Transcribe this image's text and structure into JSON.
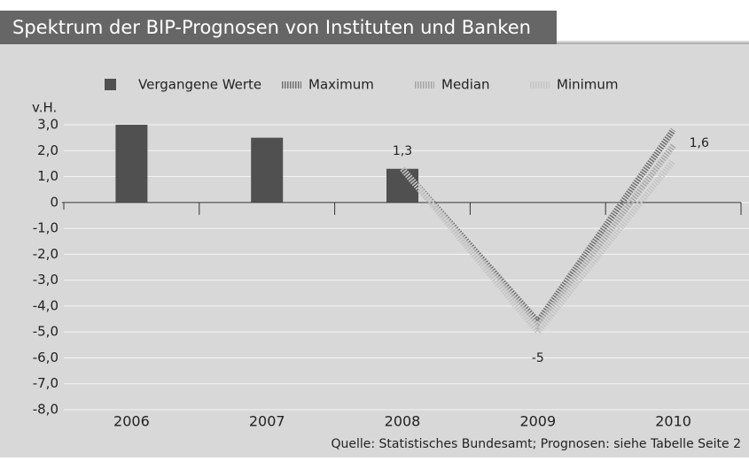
{
  "chart_data": {
    "type": "bar-line",
    "title": "Spektrum der BIP-Prognosen von Instituten und Banken",
    "y_axis_label": "v.H.",
    "source": "Quelle: Statistisches Bundesamt; Prognosen: siehe Tabelle Seite 2",
    "categories": [
      "2006",
      "2007",
      "2008",
      "2009",
      "2010"
    ],
    "series": [
      {
        "name": "Vergangene Werte",
        "kind": "bar",
        "color": "#505050",
        "values": [
          3.0,
          2.5,
          1.3,
          null,
          null
        ],
        "value_labels": [
          null,
          null,
          "1,3",
          null,
          null
        ]
      },
      {
        "name": "Maximum",
        "kind": "line",
        "color": "#6e6e6e",
        "values": [
          null,
          null,
          1.3,
          -4.6,
          2.8
        ]
      },
      {
        "name": "Median",
        "kind": "line",
        "color": "#a6a6a6",
        "values": [
          null,
          null,
          1.3,
          -4.8,
          2.2
        ]
      },
      {
        "name": "Minimum",
        "kind": "line",
        "color": "#c4c4c4",
        "values": [
          null,
          null,
          1.3,
          -5.0,
          1.6
        ],
        "value_labels": [
          null,
          null,
          null,
          "-5",
          "1,6"
        ]
      }
    ],
    "ylim": [
      -8,
      3
    ],
    "yticks": [
      {
        "value": 3,
        "label": "3,0"
      },
      {
        "value": 2,
        "label": "2,0"
      },
      {
        "value": 1,
        "label": "1,0"
      },
      0,
      {
        "value": -1,
        "label": "-1,0"
      },
      {
        "value": -2,
        "label": "-2,0"
      },
      {
        "value": -3,
        "label": "-3,0"
      },
      {
        "value": -4,
        "label": "-4,0"
      },
      {
        "value": -5,
        "label": "-5,0"
      },
      {
        "value": -6,
        "label": "-6,0"
      },
      {
        "value": -7,
        "label": "-7,0"
      },
      {
        "value": -8,
        "label": "-8,0"
      }
    ],
    "grid": true
  }
}
